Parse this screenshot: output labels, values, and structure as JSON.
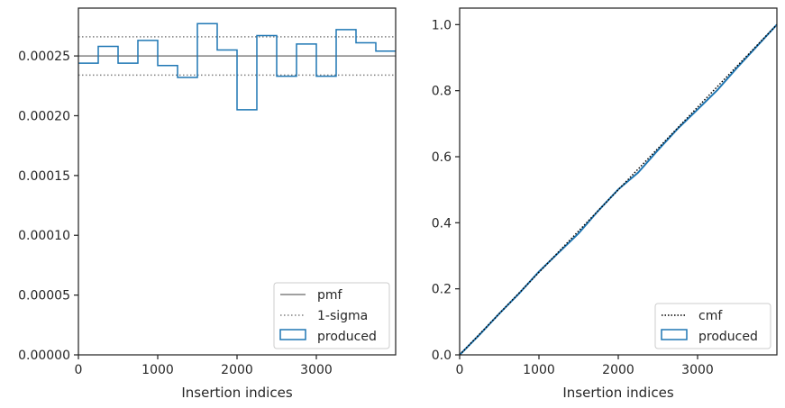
{
  "chart_data": [
    {
      "type": "line",
      "xlabel": "Insertion indices",
      "ylabel": "",
      "xlim": [
        0,
        4000
      ],
      "ylim": [
        0,
        0.00029
      ],
      "xticks": [
        "0",
        "1000",
        "2000",
        "3000"
      ],
      "yticks": [
        "0.00000",
        "0.00005",
        "0.00010",
        "0.00015",
        "0.00020",
        "0.00025"
      ],
      "legend_placement": "lower-right",
      "legend": [
        "pmf",
        "1-sigma",
        "produced"
      ],
      "pmf": 0.00025,
      "sigma_lower": 0.000234,
      "sigma_upper": 0.000266,
      "produced": {
        "bin_edges": [
          0,
          250,
          500,
          750,
          1000,
          1250,
          1500,
          1750,
          2000,
          2250,
          2500,
          2750,
          3000,
          3250,
          3500,
          3750,
          4000
        ],
        "values": [
          0.000244,
          0.000258,
          0.000244,
          0.000263,
          0.000242,
          0.000232,
          0.000277,
          0.000255,
          0.000205,
          0.000267,
          0.000233,
          0.00026,
          0.000233,
          0.000272,
          0.000261,
          0.000254
        ]
      },
      "colors": {
        "pmf": "#808080",
        "sigma": "#808080",
        "produced": "#1f77b4"
      }
    },
    {
      "type": "line",
      "xlabel": "Insertion indices",
      "ylabel": "",
      "xlim": [
        0,
        4000
      ],
      "ylim": [
        0,
        1.05
      ],
      "xticks": [
        "0",
        "1000",
        "2000",
        "3000"
      ],
      "yticks": [
        "0.0",
        "0.2",
        "0.4",
        "0.6",
        "0.8",
        "1.0"
      ],
      "legend_placement": "lower-right",
      "legend": [
        "cmf",
        "produced"
      ],
      "cmf": {
        "x": [
          0,
          4000
        ],
        "y": [
          0,
          1
        ]
      },
      "produced": {
        "x": [
          0,
          250,
          500,
          750,
          1000,
          1250,
          1500,
          1750,
          2000,
          2250,
          2500,
          2750,
          3000,
          3250,
          3500,
          3750,
          4000
        ],
        "y": [
          0,
          0.061,
          0.125,
          0.186,
          0.252,
          0.31,
          0.368,
          0.437,
          0.501,
          0.552,
          0.62,
          0.685,
          0.743,
          0.802,
          0.87,
          0.935,
          1.0
        ]
      },
      "colors": {
        "cmf": "#000000",
        "produced": "#1f77b4"
      }
    }
  ]
}
